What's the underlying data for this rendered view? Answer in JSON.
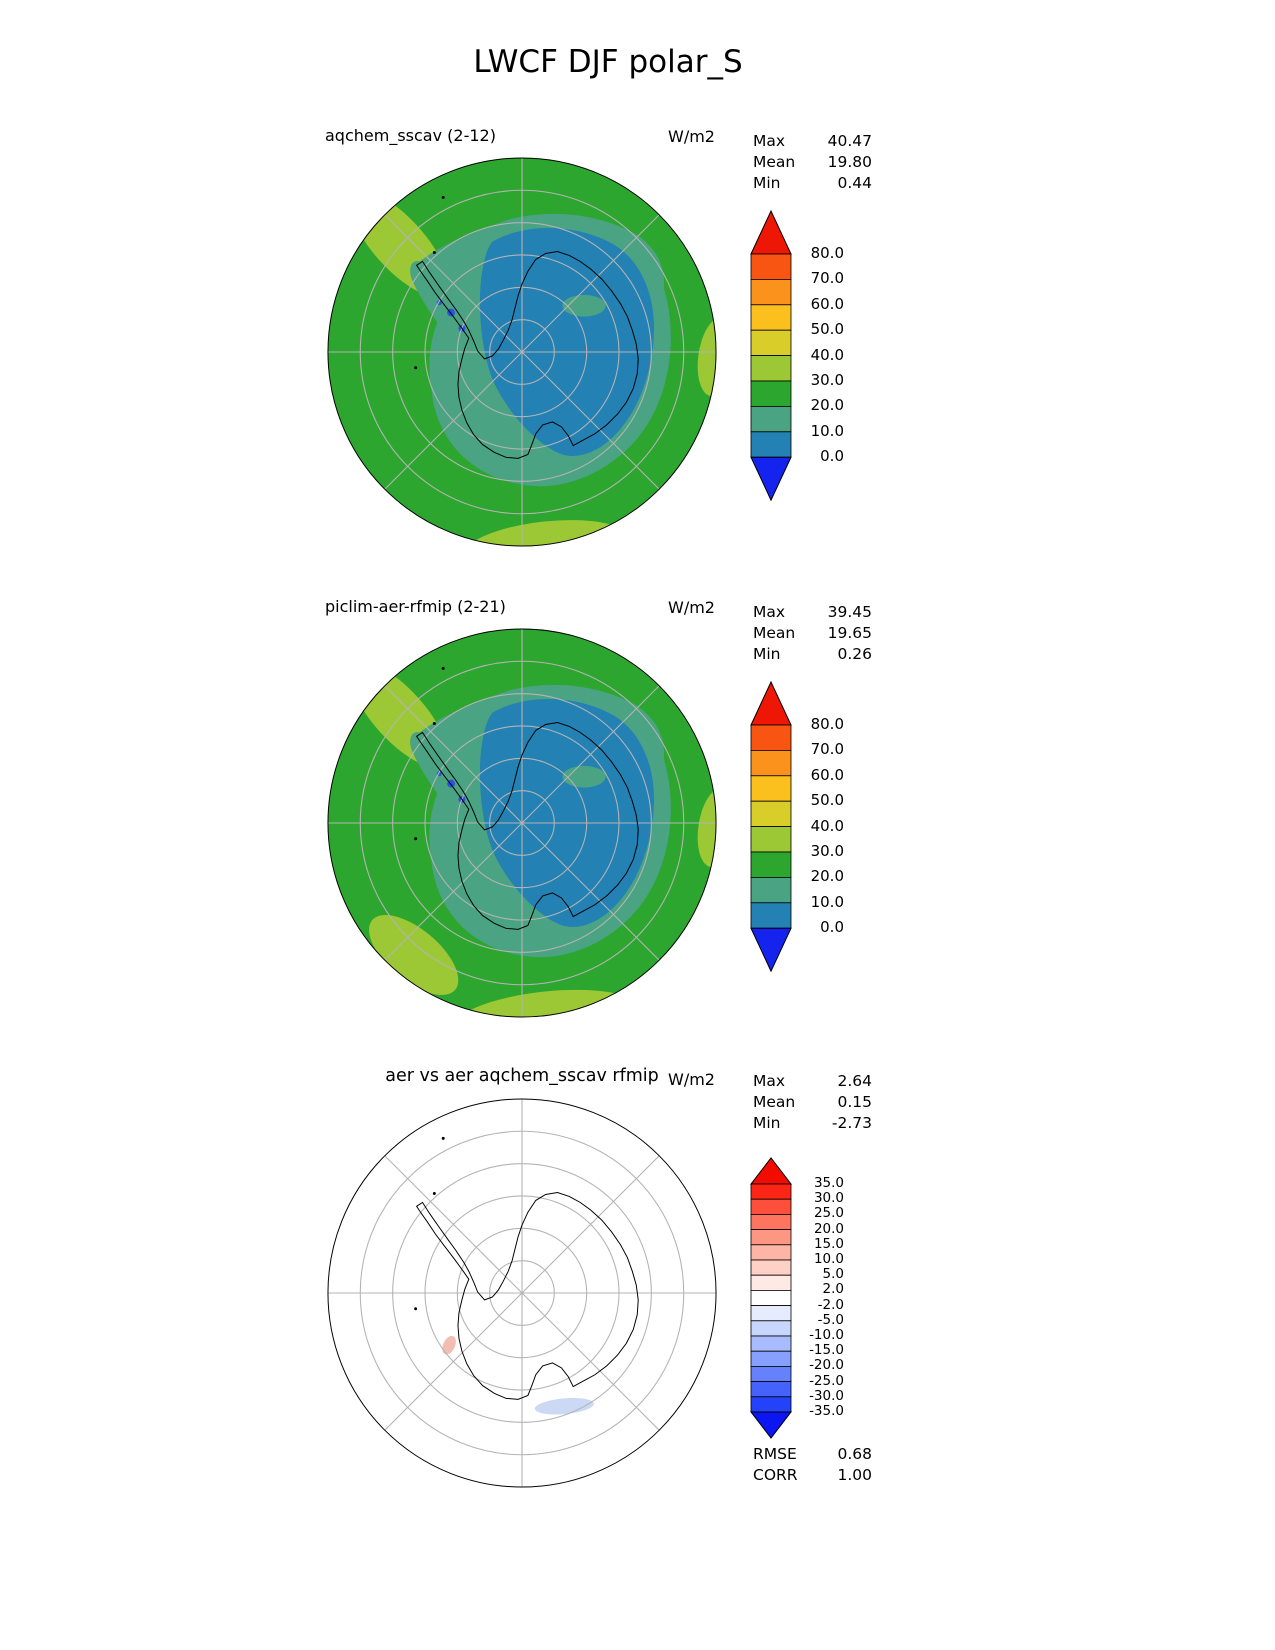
{
  "title": "LWCF DJF polar_S",
  "chart_data": {
    "type": "heatmap",
    "subtype": "south-polar stereographic filled-contour maps",
    "title": "LWCF DJF polar_S",
    "variable": "LWCF",
    "season": "DJF",
    "region": "polar_S",
    "units": "W/m2",
    "panels": [
      {
        "name": "aqchem_sscav (2-12)",
        "units_label": "W/m2",
        "stats": [
          {
            "label": "Max",
            "value": "40.47"
          },
          {
            "label": "Mean",
            "value": "19.80"
          },
          {
            "label": "Min",
            "value": "0.44"
          }
        ],
        "colorbar": "lwcf"
      },
      {
        "name": "piclim-aer-rfmip (2-21)",
        "units_label": "W/m2",
        "stats": [
          {
            "label": "Max",
            "value": "39.45"
          },
          {
            "label": "Mean",
            "value": "19.65"
          },
          {
            "label": "Min",
            "value": "0.26"
          }
        ],
        "colorbar": "lwcf"
      },
      {
        "name": "aer vs aer aqchem_sscav rfmip",
        "units_label": "W/m2",
        "stats": [
          {
            "label": "Max",
            "value": "2.64"
          },
          {
            "label": "Mean",
            "value": "0.15"
          },
          {
            "label": "Min",
            "value": "-2.73"
          }
        ],
        "extra_stats": [
          {
            "label": "RMSE",
            "value": "0.68"
          },
          {
            "label": "CORR",
            "value": "1.00"
          }
        ],
        "colorbar": "diff"
      }
    ],
    "colorbars": {
      "lwcf": {
        "levels": [
          80,
          70,
          60,
          50,
          40,
          30,
          20,
          10,
          0
        ],
        "tick_labels": [
          "80.0",
          "70.0",
          "60.0",
          "50.0",
          "40.0",
          "30.0",
          "20.0",
          "10.0",
          "0.0"
        ],
        "band_colors": [
          "#f85412",
          "#fb921b",
          "#fcc01e",
          "#d9cd2a",
          "#9cc835",
          "#2ca62e",
          "#4aa383",
          "#2381b4"
        ],
        "over_color": "#ee1605",
        "under_color": "#1423ee"
      },
      "diff": {
        "levels": [
          35,
          30,
          25,
          20,
          15,
          10,
          5,
          2,
          -2,
          -5,
          -10,
          -15,
          -20,
          -25,
          -30,
          -35
        ],
        "tick_labels": [
          "35.0",
          "30.0",
          "25.0",
          "20.0",
          "15.0",
          "10.0",
          "5.0",
          "2.0",
          "-2.0",
          "-5.0",
          "-10.0",
          "-15.0",
          "-20.0",
          "-25.0",
          "-30.0",
          "-35.0"
        ],
        "band_colors": [
          "#fd2616",
          "#fd503c",
          "#fd7560",
          "#fd9784",
          "#feb5a6",
          "#fed0c6",
          "#ffe9e4",
          "#ffffff",
          "#e6ecfe",
          "#c8d6fe",
          "#a8bcfd",
          "#879ffd",
          "#6681fc",
          "#4563fb",
          "#2442fa"
        ],
        "over_color": "#f30b00",
        "under_color": "#0b16f3"
      }
    },
    "map_colors": {
      "ocean": "#2ca62e",
      "band_30_40": "#9cc835",
      "band_10_20": "#4aa383",
      "band_0_10": "#2381b4",
      "low_spot": "#2a52e0",
      "diff_background": "#ffffff",
      "diff_pos_spot": "#f2beb4",
      "diff_neg_spot": "#ccd9f5",
      "grid": "#b4b4b4",
      "coastline": "#000000"
    }
  }
}
